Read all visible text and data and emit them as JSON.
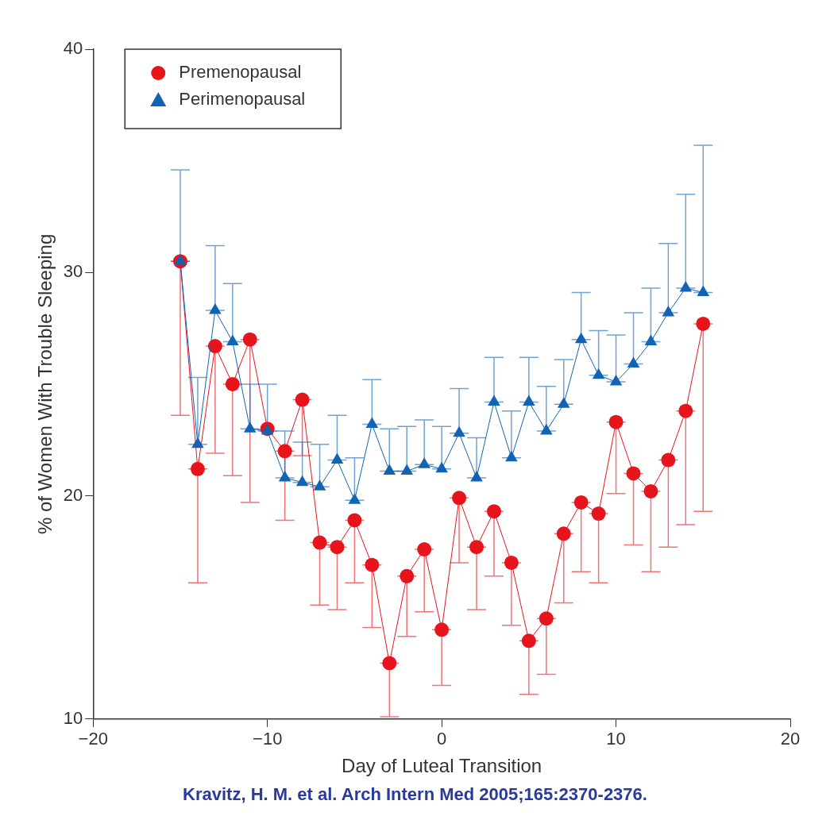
{
  "chart_data": {
    "type": "line",
    "xlabel": "Day of Luteal Transition",
    "ylabel": "% of Women With Trouble Sleeping",
    "xlim": [
      -20,
      20
    ],
    "xticks": [
      -20,
      -10,
      0,
      10,
      20
    ],
    "ylim": [
      10,
      40
    ],
    "yticks": [
      10,
      20,
      30,
      40
    ],
    "legend": "top left",
    "line_style": "solid",
    "x": [
      -15,
      -14,
      -13,
      -12,
      -11,
      -10,
      -9,
      -8,
      -7,
      -6,
      -5,
      -4,
      -3,
      -2,
      -1,
      0,
      1,
      2,
      3,
      4,
      5,
      6,
      7,
      8,
      9,
      10,
      11,
      12,
      13,
      14,
      15
    ],
    "series": [
      {
        "name": "Premenopausal",
        "color": "#e8141c",
        "marker": "circle",
        "values": [
          30.5,
          21.2,
          26.7,
          25.0,
          27.0,
          23.0,
          22.0,
          24.3,
          17.9,
          17.7,
          18.9,
          16.9,
          12.5,
          16.4,
          17.6,
          14.0,
          19.9,
          17.7,
          19.3,
          17.0,
          13.5,
          14.5,
          18.3,
          19.7,
          19.2,
          23.3,
          21.0,
          20.2,
          21.6,
          23.8,
          27.7
        ],
        "errors": [
          [
            23.6,
            30.5
          ],
          [
            16.1,
            21.2
          ],
          [
            21.9,
            26.7
          ],
          [
            20.9,
            25.0
          ],
          [
            19.7,
            27.0
          ],
          null,
          [
            18.9,
            22.0
          ],
          [
            21.8,
            24.3
          ],
          [
            15.1,
            17.9
          ],
          [
            14.9,
            17.7
          ],
          [
            16.1,
            18.9
          ],
          [
            14.1,
            16.9
          ],
          [
            10.1,
            12.5
          ],
          [
            13.7,
            16.4
          ],
          [
            14.8,
            17.6
          ],
          [
            11.5,
            14.0
          ],
          [
            17.0,
            19.9
          ],
          [
            14.9,
            17.7
          ],
          [
            16.4,
            19.3
          ],
          [
            14.2,
            17.0
          ],
          [
            11.1,
            13.5
          ],
          [
            12.0,
            14.5
          ],
          [
            15.2,
            18.3
          ],
          [
            16.6,
            19.7
          ],
          [
            16.1,
            19.2
          ],
          [
            20.1,
            23.3
          ],
          [
            17.8,
            21.0
          ],
          [
            16.6,
            20.2
          ],
          [
            17.7,
            21.6
          ],
          [
            18.7,
            23.8
          ],
          [
            19.3,
            27.7
          ]
        ]
      },
      {
        "name": "Perimenopausal",
        "color": "#1164b4",
        "marker": "triangle",
        "values": [
          30.5,
          22.3,
          28.3,
          26.9,
          23.0,
          22.9,
          20.8,
          20.6,
          20.4,
          21.6,
          19.8,
          23.2,
          21.1,
          21.1,
          21.4,
          21.2,
          22.8,
          20.8,
          24.2,
          21.7,
          24.2,
          22.9,
          24.1,
          27.0,
          25.4,
          25.1,
          25.9,
          26.9,
          28.2,
          29.3,
          29.1
        ],
        "errors": [
          [
            30.5,
            34.6
          ],
          [
            22.3,
            25.3
          ],
          [
            28.3,
            31.2
          ],
          [
            26.9,
            29.5
          ],
          [
            23.0,
            25.0
          ],
          [
            22.9,
            25.0
          ],
          [
            20.8,
            22.9
          ],
          [
            20.6,
            22.4
          ],
          [
            20.4,
            22.3
          ],
          [
            21.6,
            23.6
          ],
          [
            19.8,
            21.7
          ],
          [
            23.2,
            25.2
          ],
          [
            21.1,
            23.0
          ],
          [
            21.1,
            23.1
          ],
          [
            21.4,
            23.4
          ],
          [
            21.2,
            23.1
          ],
          [
            22.8,
            24.8
          ],
          [
            20.8,
            22.6
          ],
          [
            24.2,
            26.2
          ],
          [
            21.7,
            23.8
          ],
          [
            24.2,
            26.2
          ],
          [
            22.9,
            24.9
          ],
          [
            24.1,
            26.1
          ],
          [
            27.0,
            29.1
          ],
          [
            25.4,
            27.4
          ],
          [
            25.1,
            27.2
          ],
          [
            25.9,
            28.2
          ],
          [
            26.9,
            29.3
          ],
          [
            28.2,
            31.3
          ],
          [
            29.3,
            33.5
          ],
          [
            29.1,
            35.7
          ]
        ]
      }
    ],
    "annotations": [
      "Kravitz, H. M. et al. Arch Intern Med 2005;165:2370-2376."
    ]
  }
}
